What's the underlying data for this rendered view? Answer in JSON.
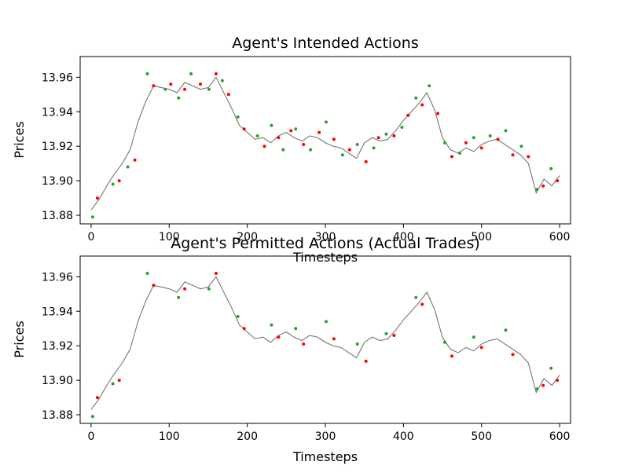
{
  "chart_data": [
    {
      "type": "line",
      "title": "Agent's Intended Actions",
      "xlabel": "Timesteps",
      "ylabel": "Prices",
      "xlim": [
        -14,
        614
      ],
      "ylim": [
        13.875,
        13.972
      ],
      "xticks": [
        0,
        100,
        200,
        300,
        400,
        500,
        600
      ],
      "yticks": [
        13.88,
        13.9,
        13.92,
        13.94,
        13.96
      ],
      "ytick_labels": [
        "13.88",
        "13.90",
        "13.92",
        "13.94",
        "13.96"
      ],
      "grid": false,
      "series": [
        {
          "color": "#808080",
          "x": [
            0,
            10,
            20,
            30,
            40,
            50,
            60,
            70,
            80,
            90,
            100,
            110,
            120,
            130,
            140,
            150,
            160,
            170,
            180,
            190,
            200,
            210,
            220,
            230,
            240,
            250,
            260,
            270,
            280,
            290,
            300,
            310,
            320,
            330,
            340,
            350,
            360,
            370,
            380,
            390,
            400,
            410,
            420,
            430,
            440,
            450,
            460,
            470,
            480,
            490,
            500,
            510,
            520,
            530,
            540,
            550,
            560,
            570,
            580,
            590,
            600
          ],
          "y": [
            13.883,
            13.889,
            13.897,
            13.904,
            13.91,
            13.918,
            13.934,
            13.946,
            13.955,
            13.954,
            13.953,
            13.951,
            13.957,
            13.955,
            13.953,
            13.954,
            13.96,
            13.951,
            13.942,
            13.932,
            13.928,
            13.924,
            13.925,
            13.922,
            13.926,
            13.928,
            13.925,
            13.923,
            13.926,
            13.925,
            13.922,
            13.92,
            13.919,
            13.916,
            13.913,
            13.922,
            13.925,
            13.923,
            13.924,
            13.929,
            13.935,
            13.94,
            13.945,
            13.951,
            13.941,
            13.925,
            13.918,
            13.916,
            13.919,
            13.917,
            13.921,
            13.923,
            13.924,
            13.921,
            13.918,
            13.915,
            13.91,
            13.893,
            13.901,
            13.897,
            13.903
          ]
        }
      ],
      "markers": {
        "buy_color": "#2ca02c",
        "sell_color": "#ff0000",
        "buy": {
          "x": [
            2,
            28,
            47,
            72,
            95,
            112,
            128,
            151,
            168,
            188,
            213,
            231,
            246,
            262,
            281,
            301,
            322,
            341,
            362,
            378,
            398,
            416,
            433,
            453,
            472,
            490,
            511,
            531,
            551,
            571,
            589
          ],
          "y": [
            13.879,
            13.898,
            13.908,
            13.962,
            13.953,
            13.948,
            13.962,
            13.953,
            13.958,
            13.937,
            13.926,
            13.932,
            13.918,
            13.93,
            13.918,
            13.934,
            13.915,
            13.921,
            13.919,
            13.927,
            13.931,
            13.948,
            13.955,
            13.922,
            13.916,
            13.925,
            13.926,
            13.929,
            13.92,
            13.895,
            13.907
          ]
        },
        "sell": {
          "x": [
            8,
            36,
            56,
            80,
            102,
            120,
            140,
            160,
            176,
            196,
            222,
            240,
            256,
            272,
            292,
            311,
            331,
            352,
            368,
            388,
            406,
            424,
            444,
            462,
            480,
            500,
            521,
            540,
            560,
            579,
            597
          ],
          "y": [
            13.89,
            13.9,
            13.912,
            13.955,
            13.956,
            13.953,
            13.956,
            13.962,
            13.95,
            13.93,
            13.92,
            13.925,
            13.929,
            13.921,
            13.928,
            13.924,
            13.918,
            13.911,
            13.925,
            13.926,
            13.938,
            13.944,
            13.939,
            13.914,
            13.922,
            13.919,
            13.924,
            13.915,
            13.914,
            13.897,
            13.9
          ]
        }
      }
    },
    {
      "type": "line",
      "title": "Agent's Permitted Actions (Actual Trades)",
      "xlabel": "Timesteps",
      "ylabel": "Prices",
      "xlim": [
        -14,
        614
      ],
      "ylim": [
        13.875,
        13.972
      ],
      "xticks": [
        0,
        100,
        200,
        300,
        400,
        500,
        600
      ],
      "yticks": [
        13.88,
        13.9,
        13.92,
        13.94,
        13.96
      ],
      "ytick_labels": [
        "13.88",
        "13.90",
        "13.92",
        "13.94",
        "13.96"
      ],
      "grid": false,
      "series": [
        {
          "color": "#808080",
          "x": [
            0,
            10,
            20,
            30,
            40,
            50,
            60,
            70,
            80,
            90,
            100,
            110,
            120,
            130,
            140,
            150,
            160,
            170,
            180,
            190,
            200,
            210,
            220,
            230,
            240,
            250,
            260,
            270,
            280,
            290,
            300,
            310,
            320,
            330,
            340,
            350,
            360,
            370,
            380,
            390,
            400,
            410,
            420,
            430,
            440,
            450,
            460,
            470,
            480,
            490,
            500,
            510,
            520,
            530,
            540,
            550,
            560,
            570,
            580,
            590,
            600
          ],
          "y": [
            13.883,
            13.889,
            13.897,
            13.904,
            13.91,
            13.918,
            13.934,
            13.946,
            13.955,
            13.954,
            13.953,
            13.951,
            13.957,
            13.955,
            13.953,
            13.954,
            13.96,
            13.951,
            13.942,
            13.932,
            13.928,
            13.924,
            13.925,
            13.922,
            13.926,
            13.928,
            13.925,
            13.923,
            13.926,
            13.925,
            13.922,
            13.92,
            13.919,
            13.916,
            13.913,
            13.922,
            13.925,
            13.923,
            13.924,
            13.929,
            13.935,
            13.94,
            13.945,
            13.951,
            13.941,
            13.925,
            13.918,
            13.916,
            13.919,
            13.917,
            13.921,
            13.923,
            13.924,
            13.921,
            13.918,
            13.915,
            13.91,
            13.893,
            13.901,
            13.897,
            13.903
          ]
        }
      ],
      "markers": {
        "buy_color": "#2ca02c",
        "sell_color": "#ff0000",
        "buy": {
          "x": [
            2,
            28,
            72,
            112,
            151,
            188,
            231,
            262,
            301,
            341,
            378,
            416,
            453,
            490,
            531,
            571,
            589
          ],
          "y": [
            13.879,
            13.898,
            13.962,
            13.948,
            13.953,
            13.937,
            13.932,
            13.93,
            13.934,
            13.921,
            13.927,
            13.948,
            13.922,
            13.925,
            13.929,
            13.895,
            13.907
          ]
        },
        "sell": {
          "x": [
            8,
            36,
            80,
            120,
            160,
            196,
            240,
            272,
            311,
            352,
            388,
            424,
            462,
            500,
            540,
            579,
            597
          ],
          "y": [
            13.89,
            13.9,
            13.955,
            13.953,
            13.962,
            13.93,
            13.925,
            13.921,
            13.924,
            13.911,
            13.926,
            13.944,
            13.914,
            13.919,
            13.915,
            13.897,
            13.9
          ]
        }
      }
    }
  ]
}
